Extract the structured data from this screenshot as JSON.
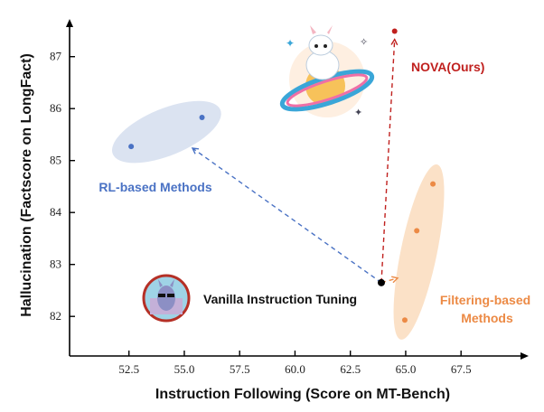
{
  "chart_data": {
    "type": "scatter",
    "xlabel": "Instruction Following (Score on MT-Bench)",
    "ylabel": "Hallucination (Factscore on LongFact)",
    "xlim": [
      50.0,
      70.4
    ],
    "ylim": [
      81.25,
      87.7
    ],
    "xticks": [
      "52.5",
      "55.0",
      "57.5",
      "60.0",
      "62.5",
      "65.0",
      "67.5"
    ],
    "yticks": [
      "82",
      "83",
      "84",
      "85",
      "86",
      "87"
    ],
    "grid": false,
    "groups": [
      {
        "name": "RL-based Methods",
        "color": "#4a72c4",
        "ellipse_color": "#dbe3f1",
        "points": [
          {
            "x": 52.6,
            "y": 85.27
          },
          {
            "x": 55.8,
            "y": 85.83
          }
        ]
      },
      {
        "name": "Filtering-based Methods",
        "name_lines": [
          "Filtering-based",
          "Methods"
        ],
        "color": "#ec8a45",
        "ellipse_color": "#fbe1c7",
        "points": [
          {
            "x": 64.96,
            "y": 81.93
          },
          {
            "x": 65.5,
            "y": 83.65
          },
          {
            "x": 66.23,
            "y": 84.55
          }
        ]
      },
      {
        "name": "Vanilla Instruction Tuning",
        "color": "#000000",
        "points": [
          {
            "x": 63.9,
            "y": 82.65
          }
        ]
      },
      {
        "name": "NOVA(Ours)",
        "color": "#c0201e",
        "points": [
          {
            "x": 64.5,
            "y": 87.49
          }
        ]
      }
    ]
  }
}
